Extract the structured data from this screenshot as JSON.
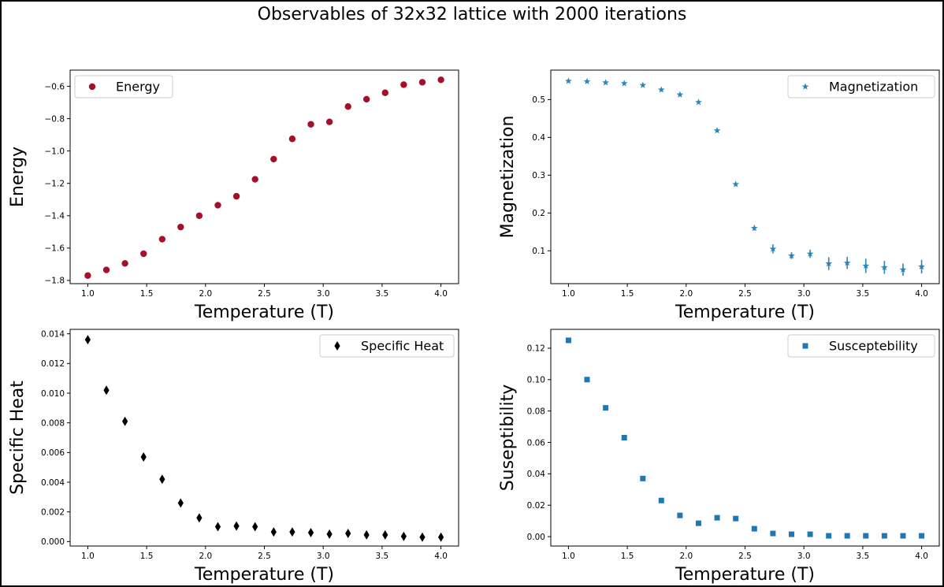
{
  "suptitle": "Observables of 32x32 lattice with 2000 iterations",
  "chart_data": [
    {
      "type": "scatter",
      "xlabel": "Temperature (T)",
      "ylabel": "Energy",
      "xlim": [
        0.85,
        4.15
      ],
      "ylim": [
        -1.82,
        -0.5
      ],
      "xticks": [
        "1.0",
        "1.5",
        "2.0",
        "2.5",
        "3.0",
        "3.5",
        "4.0"
      ],
      "yticks": [
        "-1.8",
        "-1.6",
        "-1.4",
        "-1.2",
        "-1.0",
        "-0.8",
        "-0.6"
      ],
      "legend": "upper left",
      "marker": "circle",
      "color": "#a50f2a",
      "series": [
        {
          "name": "Energy",
          "x": [
            1.0,
            1.158,
            1.316,
            1.474,
            1.632,
            1.789,
            1.947,
            2.105,
            2.263,
            2.421,
            2.579,
            2.737,
            2.895,
            3.053,
            3.211,
            3.368,
            3.526,
            3.684,
            3.842,
            4.0
          ],
          "y": [
            -1.77,
            -1.735,
            -1.695,
            -1.635,
            -1.545,
            -1.47,
            -1.4,
            -1.335,
            -1.28,
            -1.175,
            -1.05,
            -0.925,
            -0.835,
            -0.82,
            -0.725,
            -0.68,
            -0.64,
            -0.59,
            -0.575,
            -0.56
          ]
        }
      ]
    },
    {
      "type": "scatter",
      "xlabel": "Temperature (T)",
      "ylabel": "Magnetization",
      "xlim": [
        0.85,
        4.15
      ],
      "ylim": [
        0.013,
        0.578
      ],
      "xticks": [
        "1.0",
        "1.5",
        "2.0",
        "2.5",
        "3.0",
        "3.5",
        "4.0"
      ],
      "yticks": [
        "0.1",
        "0.2",
        "0.3",
        "0.4",
        "0.5"
      ],
      "legend": "upper right",
      "marker": "star",
      "color": "#2c86b8",
      "series": [
        {
          "name": "Magnetization",
          "x": [
            1.0,
            1.158,
            1.316,
            1.474,
            1.632,
            1.789,
            1.947,
            2.105,
            2.263,
            2.421,
            2.579,
            2.737,
            2.895,
            3.053,
            3.211,
            3.368,
            3.526,
            3.684,
            3.842,
            4.0
          ],
          "y": [
            0.549,
            0.548,
            0.545,
            0.543,
            0.538,
            0.526,
            0.513,
            0.493,
            0.418,
            0.276,
            0.16,
            0.105,
            0.087,
            0.092,
            0.066,
            0.068,
            0.06,
            0.056,
            0.05,
            0.058
          ],
          "yerr": [
            0.002,
            0.002,
            0.002,
            0.002,
            0.003,
            0.003,
            0.003,
            0.003,
            0.004,
            0.005,
            0.006,
            0.012,
            0.009,
            0.011,
            0.017,
            0.016,
            0.019,
            0.017,
            0.016,
            0.018
          ]
        }
      ]
    },
    {
      "type": "scatter",
      "xlabel": "Temperature (T)",
      "ylabel": "Specific Heat",
      "xlim": [
        0.85,
        4.15
      ],
      "ylim": [
        -0.0003,
        0.0143
      ],
      "xticks": [
        "1.0",
        "1.5",
        "2.0",
        "2.5",
        "3.0",
        "3.5",
        "4.0"
      ],
      "yticks": [
        "0.000",
        "0.002",
        "0.004",
        "0.006",
        "0.008",
        "0.010",
        "0.012",
        "0.014"
      ],
      "legend": "upper right",
      "marker": "thin_diamond",
      "color": "#000000",
      "series": [
        {
          "name": "Specific Heat",
          "x": [
            1.0,
            1.158,
            1.316,
            1.474,
            1.632,
            1.789,
            1.947,
            2.105,
            2.263,
            2.421,
            2.579,
            2.737,
            2.895,
            3.053,
            3.211,
            3.368,
            3.526,
            3.684,
            3.842,
            4.0
          ],
          "y": [
            0.0136,
            0.0102,
            0.0081,
            0.0057,
            0.0042,
            0.0026,
            0.0016,
            0.001,
            0.00105,
            0.001,
            0.00065,
            0.00065,
            0.0006,
            0.0005,
            0.00055,
            0.00045,
            0.00045,
            0.00035,
            0.0003,
            0.0003
          ]
        }
      ]
    },
    {
      "type": "scatter",
      "xlabel": "Temperature (T)",
      "ylabel": "Suseptibility",
      "xlim": [
        0.85,
        4.15
      ],
      "ylim": [
        -0.006,
        0.132
      ],
      "xticks": [
        "1.0",
        "1.5",
        "2.0",
        "2.5",
        "3.0",
        "3.5",
        "4.0"
      ],
      "yticks": [
        "0.00",
        "0.02",
        "0.04",
        "0.06",
        "0.08",
        "0.10",
        "0.12"
      ],
      "legend": "upper right",
      "marker": "square",
      "color": "#1f77b4",
      "series": [
        {
          "name": "Susceptebility",
          "x": [
            1.0,
            1.158,
            1.316,
            1.474,
            1.632,
            1.789,
            1.947,
            2.105,
            2.263,
            2.421,
            2.579,
            2.737,
            2.895,
            3.053,
            3.211,
            3.368,
            3.526,
            3.684,
            3.842,
            4.0
          ],
          "y": [
            0.125,
            0.1,
            0.082,
            0.063,
            0.037,
            0.023,
            0.0135,
            0.0085,
            0.012,
            0.0115,
            0.005,
            0.002,
            0.0015,
            0.0015,
            0.0005,
            0.0005,
            0.0005,
            0.0005,
            0.0005,
            0.0005
          ]
        }
      ]
    }
  ]
}
